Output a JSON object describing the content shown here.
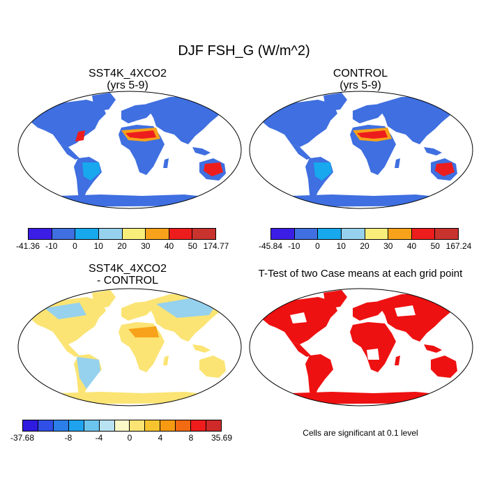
{
  "title": "DJF FSH_G (W/m^2)",
  "panels": [
    {
      "title": "SST4K_4XCO2\n(yrs 5-9)"
    },
    {
      "title": "CONTROL\n(yrs 5-9)"
    },
    {
      "title": "SST4K_4XCO2\n- CONTROL"
    },
    {
      "title": "T-Test of two Case means at each grid point"
    }
  ],
  "colorbars": [
    {
      "colors": [
        "#3b1ee6",
        "#3f6fe0",
        "#17a8ee",
        "#96d1ee",
        "#f9ee7a",
        "#f7a21a",
        "#ee1d1d",
        "#c9332e"
      ],
      "labels": [
        "-41.36",
        "-10",
        "0",
        "10",
        "20",
        "30",
        "40",
        "50",
        "174.77"
      ]
    },
    {
      "colors": [
        "#3b1ee6",
        "#3f6fe0",
        "#17a8ee",
        "#96d1ee",
        "#f9ee7a",
        "#f7a21a",
        "#ee1d1d",
        "#c9332e"
      ],
      "labels": [
        "-45.84",
        "-10",
        "0",
        "10",
        "20",
        "30",
        "40",
        "50",
        "167.24"
      ]
    },
    {
      "colors": [
        "#2f1ae0",
        "#2f4fe6",
        "#2c7ee8",
        "#1fa3ee",
        "#6cc4ec",
        "#b8e2f2",
        "#fbf8c8",
        "#fbe474",
        "#f7c430",
        "#f79a12",
        "#f26a12",
        "#ef1c1c",
        "#cf2a2a"
      ],
      "labels": [
        "-37.68",
        "-8",
        "-4",
        "0",
        "4",
        "8",
        "35.69"
      ]
    }
  ],
  "map_colors": {
    "ocean": "#ffffff",
    "cold": "#3f6fe0",
    "cool": "#17a8ee",
    "warm": "#f7a21a",
    "hot": "#ee1d1d",
    "diff_pos": "#fbe474",
    "diff_neg": "#96d1ee",
    "significant": "#ee1111"
  },
  "note": "Cells are significant at 0.1 level"
}
